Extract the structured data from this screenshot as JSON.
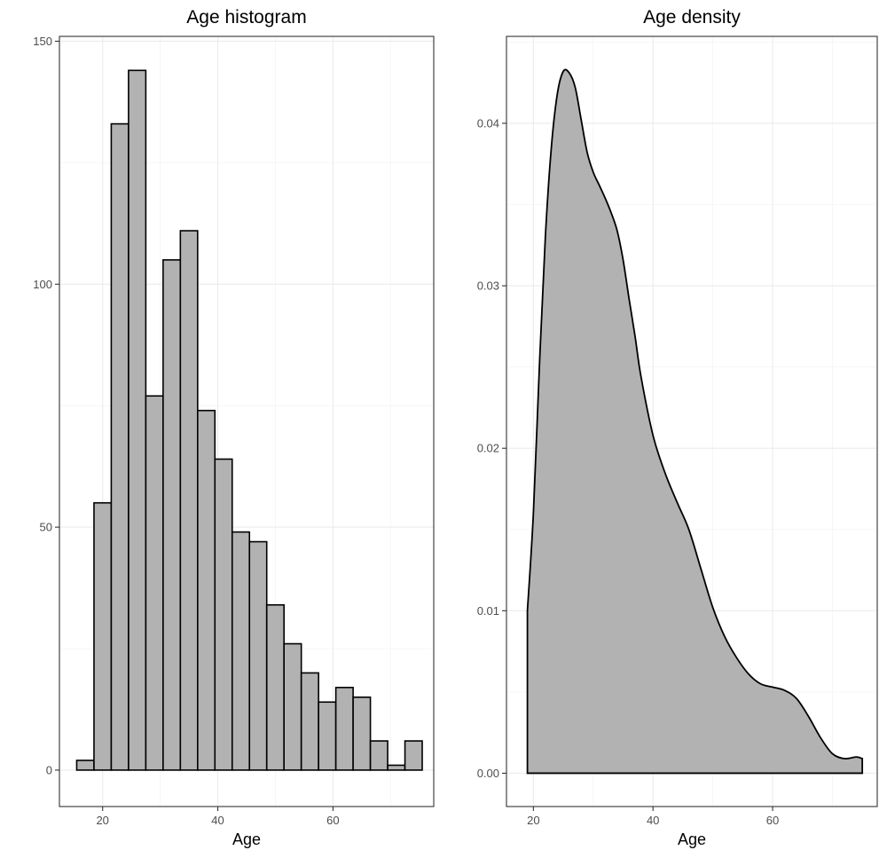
{
  "chart_data": [
    {
      "type": "bar",
      "title": "Age histogram",
      "xlabel": "Age",
      "ylabel": "",
      "xlim": [
        12.5,
        77.5
      ],
      "ylim": [
        -7.5,
        151
      ],
      "xticks": [
        20,
        40,
        60
      ],
      "yticks": [
        0,
        50,
        100,
        150
      ],
      "grid": true,
      "bin_width": 3,
      "bin_centers": [
        17,
        20,
        23,
        26,
        29,
        32,
        35,
        38,
        41,
        44,
        47,
        50,
        53,
        56,
        59,
        62,
        65,
        68,
        71,
        74
      ],
      "values": [
        2,
        55,
        133,
        144,
        77,
        105,
        111,
        74,
        64,
        49,
        47,
        34,
        26,
        20,
        14,
        17,
        15,
        6,
        1,
        6
      ],
      "bar_color": "#b2b2b2",
      "outline_color": "#000000"
    },
    {
      "type": "area",
      "title": "Age density",
      "xlabel": "Age",
      "ylabel": "",
      "xlim": [
        15.5,
        77.5
      ],
      "ylim": [
        -0.00205,
        0.04535
      ],
      "xticks": [
        20,
        40,
        60
      ],
      "yticks": [
        0.0,
        0.01,
        0.02,
        0.03,
        0.04
      ],
      "ytick_labels": [
        "0.00",
        "0.01",
        "0.02",
        "0.03",
        "0.04"
      ],
      "grid": true,
      "x": [
        19,
        20,
        21,
        22,
        23,
        24,
        25,
        26,
        27,
        28,
        29,
        30,
        31,
        32,
        33,
        34,
        35,
        36,
        37,
        38,
        40,
        42,
        44,
        46,
        48,
        50,
        52,
        54,
        56,
        58,
        60,
        62,
        64,
        66,
        68,
        70,
        72,
        74,
        75
      ],
      "y": [
        0.01,
        0.016,
        0.025,
        0.033,
        0.0385,
        0.0418,
        0.0432,
        0.0431,
        0.0422,
        0.0402,
        0.0382,
        0.037,
        0.0362,
        0.0354,
        0.0345,
        0.0334,
        0.0316,
        0.0292,
        0.0269,
        0.0244,
        0.0208,
        0.0185,
        0.0167,
        0.015,
        0.0126,
        0.0102,
        0.0084,
        0.0071,
        0.0061,
        0.0055,
        0.0053,
        0.0051,
        0.0046,
        0.0035,
        0.0022,
        0.0012,
        0.0009,
        0.001,
        0.0009
      ],
      "fill_color": "#b2b2b2",
      "line_color": "#000000"
    }
  ]
}
